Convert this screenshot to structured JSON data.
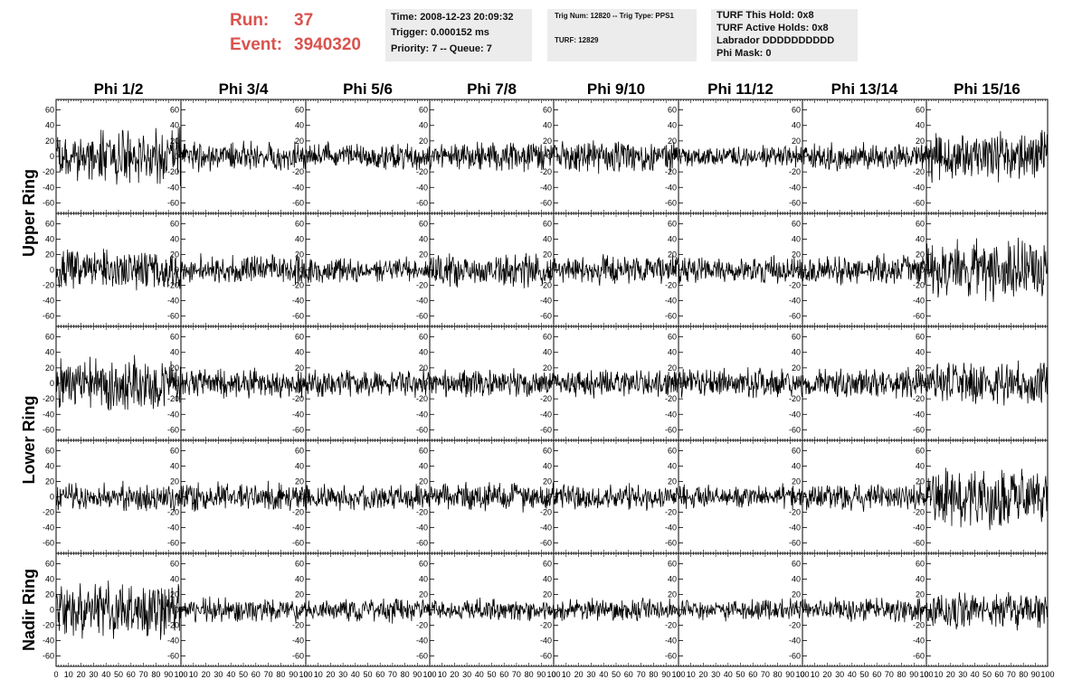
{
  "header": {
    "run_label": "Run:",
    "run_value": "37",
    "event_label": "Event:",
    "event_value": "3940320"
  },
  "info_boxes": {
    "time": {
      "line1": "Time: 2008-12-23 20:09:32",
      "line2": "Trigger: 0.000152 ms",
      "line3": "Priority: 7 -- Queue: 7"
    },
    "trig": {
      "line1": "Trig Num: 12820 -- Trig Type: PPS1",
      "line2": "TURF: 12829"
    },
    "turf": {
      "line1": "TURF This Hold: 0x8",
      "line2": "TURF Active Holds: 0x8",
      "line3": "Labrador DDDDDDDDDD",
      "line4": "Phi Mask: 0"
    }
  },
  "chart_data": {
    "type": "line",
    "columns": [
      "Phi 1/2",
      "Phi 3/4",
      "Phi 5/6",
      "Phi 7/8",
      "Phi 9/10",
      "Phi 11/12",
      "Phi 13/14",
      "Phi 15/16"
    ],
    "rings": [
      {
        "label": "Upper Ring",
        "rows": 2
      },
      {
        "label": "Lower Ring",
        "rows": 2
      },
      {
        "label": "Nadir Ring",
        "rows": 1
      }
    ],
    "xlim": [
      0,
      100
    ],
    "ylim": [
      -70,
      70
    ],
    "x_ticks": [
      "0",
      "10",
      "20",
      "30",
      "40",
      "50",
      "60",
      "70",
      "80",
      "90",
      "100"
    ],
    "y_ticks": [
      "60",
      "40",
      "20",
      "0",
      "-20",
      "-40",
      "-60"
    ],
    "y_tick_values": [
      60,
      40,
      20,
      0,
      -20,
      -40,
      -60
    ],
    "panel_amplitudes": [
      [
        40,
        22,
        20,
        22,
        24,
        16,
        20,
        38
      ],
      [
        30,
        22,
        18,
        26,
        22,
        20,
        22,
        46
      ],
      [
        42,
        22,
        20,
        22,
        20,
        22,
        22,
        32
      ],
      [
        22,
        22,
        20,
        22,
        20,
        18,
        20,
        44
      ],
      [
        44,
        18,
        18,
        16,
        18,
        16,
        18,
        28
      ]
    ]
  }
}
